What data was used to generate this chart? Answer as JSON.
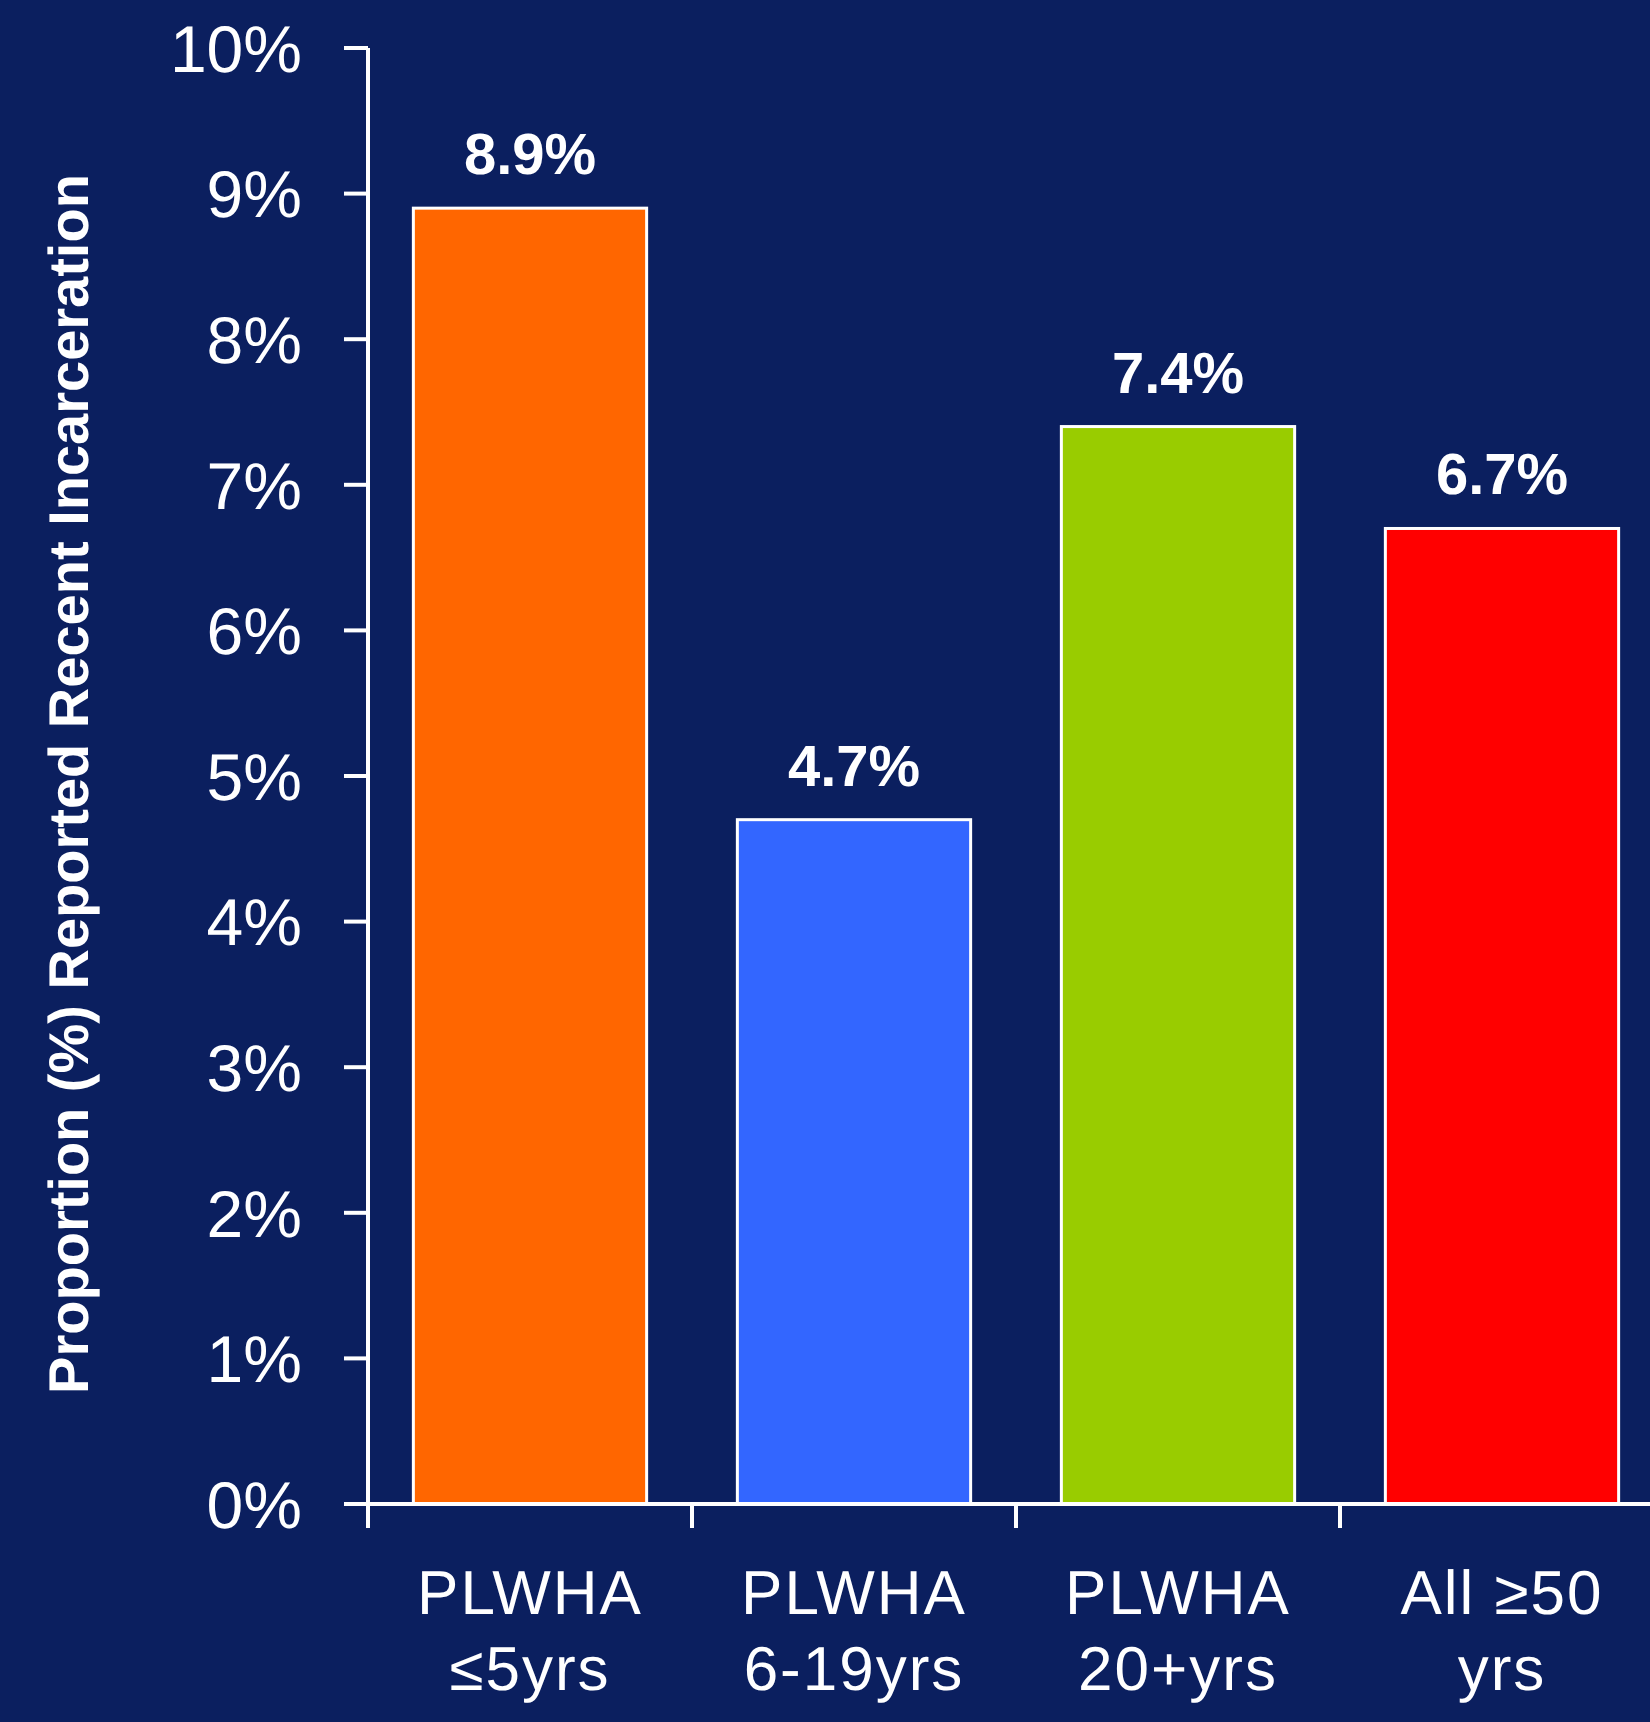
{
  "chart_data": {
    "type": "bar",
    "ylabel": "Proportion (%) Reported Recent Incarceration",
    "categories": [
      "PLWHA\n≤5yrs",
      "PLWHA\n6-19yrs",
      "PLWHA\n20+yrs",
      "All ≥50\nyrs"
    ],
    "values": [
      8.9,
      4.7,
      7.4,
      6.7
    ],
    "colors": [
      "#ff6600",
      "#3366ff",
      "#99cc00",
      "#ff0000"
    ],
    "value_labels": [
      "8.9%",
      "4.7%",
      "7.4%",
      "6.7%"
    ],
    "ylim": [
      0,
      10
    ],
    "yticks": [
      {
        "value": 0,
        "label": "0%"
      },
      {
        "value": 1,
        "label": "1%"
      },
      {
        "value": 2,
        "label": "2%"
      },
      {
        "value": 3,
        "label": "3%"
      },
      {
        "value": 4,
        "label": "4%"
      },
      {
        "value": 5,
        "label": "5%"
      },
      {
        "value": 6,
        "label": "6%"
      },
      {
        "value": 7,
        "label": "7%"
      },
      {
        "value": 8,
        "label": "8%"
      },
      {
        "value": 9,
        "label": "9%"
      },
      {
        "value": 10,
        "label": "10%"
      }
    ]
  }
}
